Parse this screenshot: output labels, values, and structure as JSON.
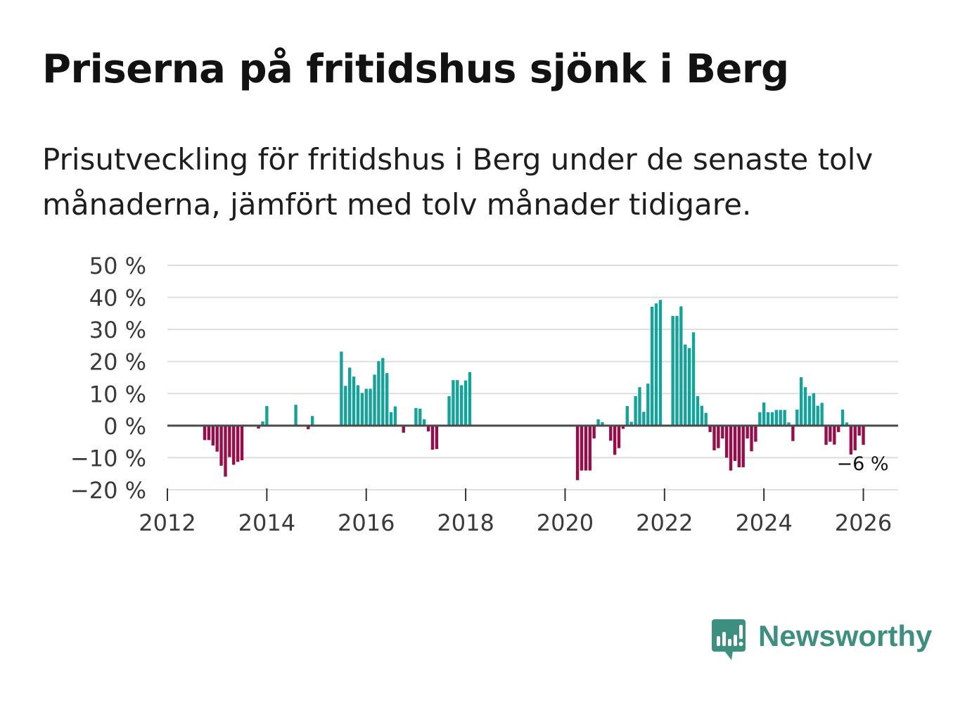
{
  "title": "Priserna på fritidshus sjönk i Berg",
  "subtitle": "Prisutveckling för fritidshus i Berg under de senaste tolv månaderna, jämfört med tolv månader tidigare.",
  "brand": {
    "name": "Newsworthy",
    "color": "#3d8f7f"
  },
  "colors": {
    "positive": "#12a39a",
    "negative": "#9c0a48",
    "zero_line": "#4a4a4a",
    "grid": "#dddddd"
  },
  "chart_data": {
    "type": "bar",
    "title": "Priserna på fritidshus sjönk i Berg",
    "xlabel": "",
    "ylabel": "",
    "ylim": [
      -20,
      50
    ],
    "xlim": [
      2012,
      2026.7
    ],
    "y_ticks": [
      50,
      40,
      30,
      20,
      10,
      0,
      -10,
      -20
    ],
    "y_tick_labels": [
      "50 %",
      "40 %",
      "30 %",
      "20 %",
      "10 %",
      "0 %",
      "−10 %",
      "−20 %"
    ],
    "x_ticks": [
      2012,
      2014,
      2016,
      2018,
      2020,
      2022,
      2024,
      2026
    ],
    "x_tick_labels": [
      "2012",
      "2014",
      "2016",
      "2018",
      "2020",
      "2022",
      "2024",
      "2026"
    ],
    "grid": true,
    "end_label": "−6 %",
    "series": [
      {
        "name": "Prisutveckling",
        "x": [
          2012.75,
          2012.833,
          2012.917,
          2013.0,
          2013.083,
          2013.167,
          2013.25,
          2013.333,
          2013.417,
          2013.5,
          2013.833,
          2013.917,
          2014.0,
          2014.583,
          2014.833,
          2014.917,
          2015.5,
          2015.583,
          2015.667,
          2015.75,
          2015.833,
          2015.917,
          2016.0,
          2016.083,
          2016.167,
          2016.25,
          2016.333,
          2016.417,
          2016.5,
          2016.583,
          2016.75,
          2017.0,
          2017.083,
          2017.167,
          2017.25,
          2017.333,
          2017.417,
          2017.667,
          2017.75,
          2017.833,
          2017.917,
          2018.0,
          2018.083,
          2020.25,
          2020.333,
          2020.417,
          2020.5,
          2020.583,
          2020.667,
          2020.75,
          2020.917,
          2021.0,
          2021.083,
          2021.167,
          2021.25,
          2021.333,
          2021.417,
          2021.5,
          2021.583,
          2021.667,
          2021.75,
          2021.833,
          2021.917,
          2022.167,
          2022.25,
          2022.333,
          2022.417,
          2022.5,
          2022.583,
          2022.667,
          2022.75,
          2022.833,
          2022.917,
          2023.0,
          2023.083,
          2023.167,
          2023.25,
          2023.333,
          2023.417,
          2023.5,
          2023.583,
          2023.667,
          2023.75,
          2023.833,
          2023.917,
          2024.0,
          2024.083,
          2024.167,
          2024.25,
          2024.333,
          2024.417,
          2024.5,
          2024.583,
          2024.667,
          2024.75,
          2024.833,
          2024.917,
          2025.0,
          2025.083,
          2025.167,
          2025.25,
          2025.333,
          2025.417,
          2025.5,
          2025.583,
          2025.667,
          2025.75,
          2025.833,
          2025.917,
          2026.0
        ],
        "values": [
          -4.5,
          -4.5,
          -6.2,
          -8.1,
          -12.5,
          -15.9,
          -9.8,
          -12.2,
          -11.3,
          -10.8,
          -0.9,
          1.3,
          6.1,
          6.5,
          -1.1,
          3.0,
          23.1,
          12.4,
          18.1,
          15.3,
          12.6,
          10.2,
          11.5,
          11.5,
          15.9,
          20.1,
          21.1,
          16.4,
          4.2,
          6.0,
          -2.2,
          5.5,
          5.3,
          2.0,
          -1.8,
          -7.5,
          -7.3,
          9.2,
          14.2,
          14.2,
          12.6,
          14.1,
          16.7,
          -17.0,
          -14.0,
          -14.0,
          -14.0,
          -4.0,
          2.0,
          1.1,
          -4.7,
          -9.1,
          -7.0,
          -1.0,
          6.1,
          1.2,
          9.2,
          12.0,
          4.3,
          13.1,
          37.1,
          38.1,
          39.2,
          34.2,
          34.2,
          37.2,
          25.3,
          24.2,
          29.1,
          9.2,
          6.2,
          4.0,
          -2.0,
          -7.7,
          -7.0,
          -4.0,
          -10.0,
          -14.0,
          -11.0,
          -13.0,
          -13.0,
          -4.0,
          -8.0,
          -5.0,
          4.2,
          7.2,
          4.2,
          4.2,
          4.9,
          4.9,
          4.9,
          1.0,
          -4.8,
          5.0,
          15.1,
          12.0,
          9.3,
          10.1,
          6.2,
          7.1,
          -6.0,
          -5.0,
          -5.9,
          -2.0,
          5.0,
          1.0,
          -9.0,
          -7.7,
          -3.1,
          -6.0
        ]
      }
    ]
  }
}
